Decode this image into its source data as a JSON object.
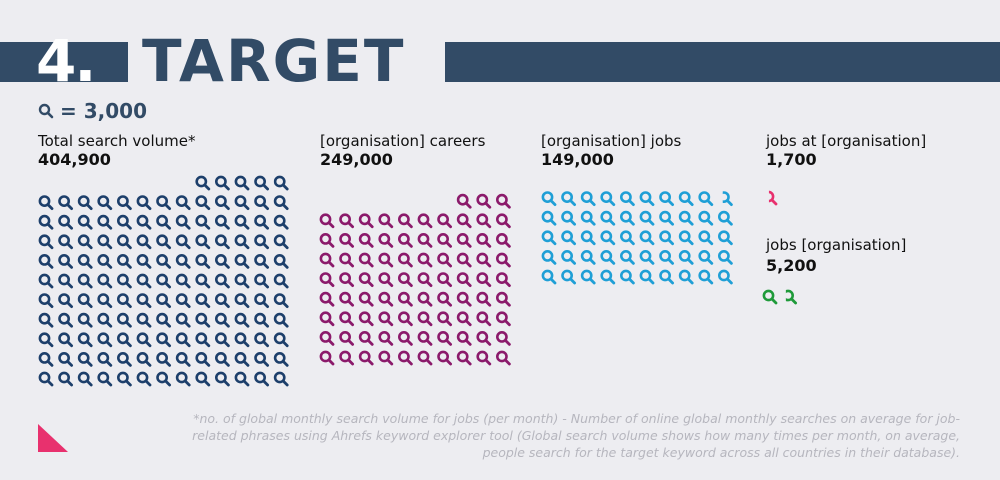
{
  "header": {
    "number": "4.",
    "title": "TARGET",
    "bar_color": "#324b66"
  },
  "legend": {
    "icon": "search-icon",
    "text": "= 3,000"
  },
  "chart_data": {
    "type": "pictogram",
    "unit_value": 3000,
    "unit_icon": "search-icon",
    "series": [
      {
        "name": "Total search volume*",
        "value_label": "404,900",
        "value": 404900,
        "color": "#1d3f6b"
      },
      {
        "name": "[organisation] careers",
        "value_label": "249,000",
        "value": 249000,
        "color": "#8b1a6b"
      },
      {
        "name": "[organisation] jobs",
        "value_label": "149,000",
        "value": 149000,
        "color": "#1f9fd6"
      },
      {
        "name": "jobs at [organisation]",
        "value_label": "1,700",
        "value": 1700,
        "color": "#e8316e"
      },
      {
        "name": "jobs [organisation]",
        "value_label": "5,200",
        "value": 5200,
        "color": "#1f9a3a"
      }
    ]
  },
  "footnote": "*no. of global monthly search volume for jobs (per month) - Number of online global monthly searches on average for job-related phrases using Ahrefs keyword explorer tool (Global search volume shows how many times per month, on average, people search for the target keyword across all countries in their database).",
  "decoration": {
    "triangle_color": "#e8316e"
  }
}
